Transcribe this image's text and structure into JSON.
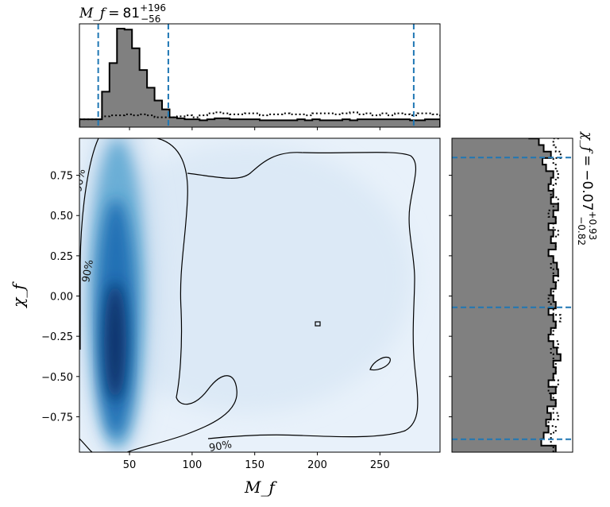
{
  "chart_data": {
    "type": "corner",
    "joint": {
      "kind": "heatmap-density",
      "xlabel": "M_f",
      "ylabel": "χ_f",
      "xlim": [
        10,
        298
      ],
      "ylim": [
        -0.97,
        0.98
      ],
      "xticks": [
        50,
        100,
        150,
        200,
        250
      ],
      "yticks": [
        -0.75,
        -0.5,
        -0.25,
        0.0,
        0.25,
        0.5,
        0.75
      ],
      "ytick_labels": [
        "−0.75",
        "−0.50",
        "−0.25",
        "0.00",
        "0.25",
        "0.50",
        "0.75"
      ],
      "density_peak": {
        "x": 40,
        "y": -0.35
      },
      "contour_labels": [
        "90%",
        "90%",
        "90%"
      ],
      "colormap": "Blues"
    },
    "top_hist": {
      "title_var": "M_f",
      "title_value": "81",
      "title_plus": "+196",
      "title_minus": "−56",
      "quantile_lines": [
        25,
        81,
        277
      ],
      "bin_width": 6,
      "bin_start": 10,
      "posterior": [
        8,
        8,
        8,
        36,
        65,
        100,
        99,
        80,
        58,
        40,
        27,
        18,
        10,
        9,
        8,
        8,
        7,
        8,
        9,
        9,
        8,
        8,
        8,
        8,
        7,
        7,
        7,
        7,
        7,
        8,
        7,
        8,
        7,
        7,
        7,
        8,
        7,
        8,
        8,
        8,
        8,
        8,
        8,
        8,
        7,
        7,
        8,
        8
      ],
      "prior": [
        8,
        8,
        8,
        11,
        12,
        12,
        13,
        12,
        13,
        12,
        10,
        10,
        10,
        11,
        12,
        10,
        12,
        14,
        15,
        14,
        13,
        13,
        14,
        14,
        12,
        13,
        13,
        14,
        13,
        13,
        12,
        14,
        14,
        14,
        13,
        14,
        15,
        13,
        14,
        12,
        14,
        12,
        14,
        13,
        12,
        14,
        14,
        13
      ]
    },
    "right_hist": {
      "title_var": "χ_f",
      "title_value": "−0.07",
      "title_plus": "+0.93",
      "title_minus": "−0.82",
      "quantile_lines": [
        -0.89,
        -0.07,
        0.86
      ],
      "bin_width": 0.0406,
      "posterior": [
        86,
        74,
        76,
        80,
        78,
        82,
        79,
        86,
        82,
        86,
        80,
        84,
        86,
        84,
        90,
        87,
        84,
        80,
        82,
        86,
        84,
        80,
        86,
        84,
        82,
        86,
        84,
        88,
        87,
        84,
        80,
        86,
        82,
        84,
        80,
        86,
        84,
        88,
        82,
        84,
        80,
        82,
        84,
        78,
        75,
        82,
        76,
        72,
        64,
        60
      ],
      "prior": [
        84,
        82,
        82,
        86,
        80,
        88,
        84,
        86,
        84,
        80,
        88,
        84,
        86,
        86,
        84,
        82,
        88,
        80,
        84,
        86,
        90,
        84,
        82,
        80,
        84,
        86,
        88,
        84,
        82,
        84,
        80,
        86,
        82,
        88,
        84,
        86,
        80,
        84,
        88,
        82,
        84,
        86,
        88,
        86,
        84,
        90,
        86,
        84,
        88,
        82
      ]
    },
    "colors": {
      "hist_fill": "#808080",
      "posterior_line": "#000000",
      "prior_line": "#000000",
      "quantile_line": "#1f77b4",
      "density_max": "#08306b",
      "density_min": "#f7fbff"
    }
  }
}
